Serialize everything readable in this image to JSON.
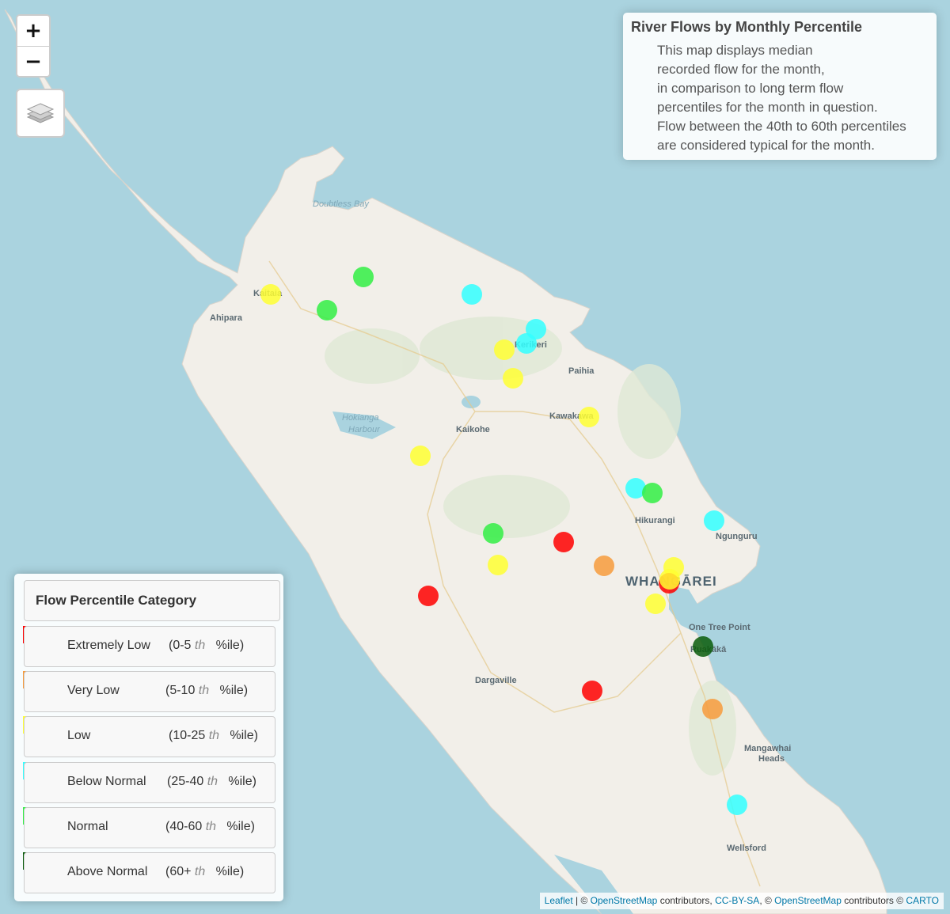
{
  "map": {
    "places": [
      {
        "name": "Doubtless Bay",
        "cls": "water"
      },
      {
        "name": "Kaitaia",
        "cls": ""
      },
      {
        "name": "Ahipara",
        "cls": ""
      },
      {
        "name": "Kerikeri",
        "cls": ""
      },
      {
        "name": "Paihia",
        "cls": ""
      },
      {
        "name": "Hokianga",
        "cls": "water"
      },
      {
        "name": "Harbour",
        "cls": "water"
      },
      {
        "name": "Kaikohe",
        "cls": ""
      },
      {
        "name": "Kawakawa",
        "cls": ""
      },
      {
        "name": "Hikurangi",
        "cls": ""
      },
      {
        "name": "Ngunguru",
        "cls": ""
      },
      {
        "name": "WHANGĀREI",
        "cls": "city"
      },
      {
        "name": "One Tree Point",
        "cls": ""
      },
      {
        "name": "Ruakākā",
        "cls": ""
      },
      {
        "name": "Dargaville",
        "cls": ""
      },
      {
        "name": "Mangawhai",
        "cls": ""
      },
      {
        "name": "Heads",
        "cls": ""
      },
      {
        "name": "Wellsford",
        "cls": ""
      }
    ],
    "sites": [
      {
        "category": "Normal"
      },
      {
        "category": "Low"
      },
      {
        "category": "Normal"
      },
      {
        "category": "Below Normal"
      },
      {
        "category": "Below Normal"
      },
      {
        "category": "Below Normal"
      },
      {
        "category": "Low"
      },
      {
        "category": "Low"
      },
      {
        "category": "Low"
      },
      {
        "category": "Low"
      },
      {
        "category": "Below Normal"
      },
      {
        "category": "Normal"
      },
      {
        "category": "Below Normal"
      },
      {
        "category": "Normal"
      },
      {
        "category": "Extremely Low"
      },
      {
        "category": "Low"
      },
      {
        "category": "Very Low"
      },
      {
        "category": "Low"
      },
      {
        "category": "Extremely Low"
      },
      {
        "category": "Low"
      },
      {
        "category": "Low"
      },
      {
        "category": "Extremely Low"
      },
      {
        "category": "Above Normal"
      },
      {
        "category": "Extremely Low"
      },
      {
        "category": "Very Low"
      },
      {
        "category": "Below Normal"
      }
    ]
  },
  "controls": {
    "zoom_in": "+",
    "zoom_out": "−",
    "layers_icon": "layers-icon"
  },
  "info": {
    "title": "River Flows by Monthly Percentile",
    "lines": [
      "This map displays median",
      "recorded flow for the month,",
      "in comparison to long term flow",
      "percentiles for the month in question.",
      "Flow between the 40th to 60th percentiles",
      "are considered typical for the month."
    ]
  },
  "legend": {
    "title": "Flow Percentile Category",
    "items": [
      {
        "label": "Extremely Low",
        "range_open": "(0-5",
        "th": "th",
        "range_close": "%ile)",
        "color": "#ff0000"
      },
      {
        "label": "Very Low",
        "range_open": "(5-10",
        "th": "th",
        "range_close": "%ile)",
        "color": "#f79b3c"
      },
      {
        "label": "Low",
        "range_open": "(10-25",
        "th": "th",
        "range_close": "%ile)",
        "color": "#ffff33"
      },
      {
        "label": "Below Normal",
        "range_open": "(25-40",
        "th": "th",
        "range_close": "%ile)",
        "color": "#33ffff"
      },
      {
        "label": "Normal",
        "range_open": "(40-60",
        "th": "th",
        "range_close": "%ile)",
        "color": "#33ee44"
      },
      {
        "label": "Above Normal",
        "range_open": "(60+",
        "th": "th",
        "range_close": "%ile)",
        "color": "#0a5c0a"
      }
    ]
  },
  "attribution": {
    "leaflet": "Leaflet",
    "sep1": " | © ",
    "osm1": "OpenStreetMap",
    "mid1": " contributors, ",
    "ccbysa": "CC-BY-SA",
    "sep2": ", © ",
    "osm2": "OpenStreetMap",
    "mid2": " contributors © ",
    "carto": "CARTO"
  }
}
